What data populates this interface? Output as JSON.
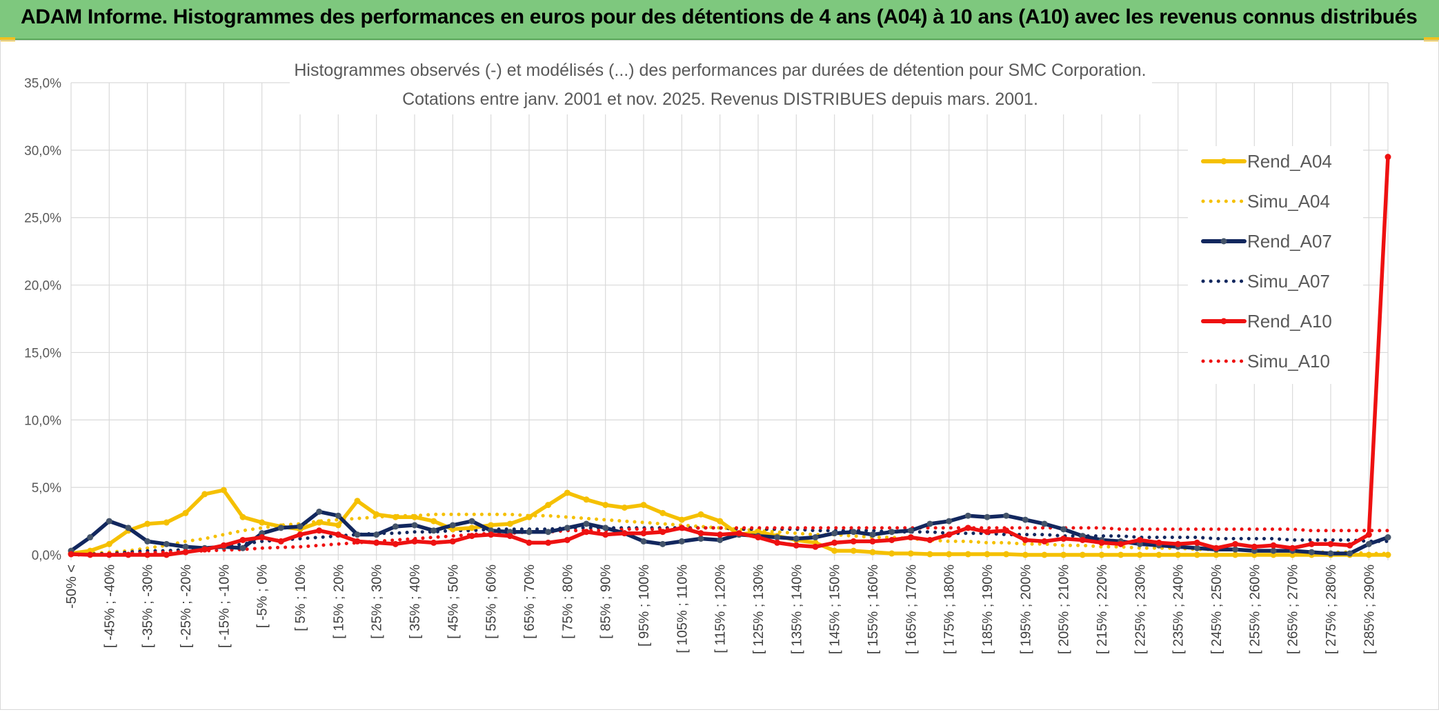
{
  "header": {
    "title": "ADAM Informe. Histogrammes des performances en euros pour des détentions de 4 ans (A04) à 10 ans (A10) avec les revenus connus distribués"
  },
  "chart_data": {
    "type": "line",
    "title": "Histogrammes observés (-) et modélisés (...) des performances par durées de détention pour SMC Corporation.",
    "subtitle": "Cotations entre janv. 2001 et nov. 2025. Revenus DISTRIBUES depuis mars. 2001.",
    "xlabel": "",
    "ylabel": "",
    "ylim": [
      0,
      35
    ],
    "y_ticks": [
      "0,0%",
      "5,0%",
      "10,0%",
      "15,0%",
      "20,0%",
      "25,0%",
      "30,0%",
      "35,0%"
    ],
    "x_labels": [
      "-50% <",
      "[ -45% ; -40%",
      "[ -35% ; -30%",
      "[ -25% ; -20%",
      "[ -15% ; -10%",
      "[ -5% ; 0%",
      "[ 5% ; 10%",
      "[ 15% ; 20%",
      "[ 25% ; 30%",
      "[ 35% ; 40%",
      "[ 45% ; 50%",
      "[ 55% ; 60%",
      "[ 65% ; 70%",
      "[ 75% ; 80%",
      "[ 85% ; 90%",
      "[ 95% ; 100%",
      "[ 105% ; 110%",
      "[ 115% ; 120%",
      "[ 125% ; 130%",
      "[ 135% ; 140%",
      "[ 145% ; 150%",
      "[ 155% ; 160%",
      "[ 165% ; 170%",
      "[ 175% ; 180%",
      "[ 185% ; 190%",
      "[ 195% ; 200%",
      "[ 205% ; 210%",
      "[ 215% ; 220%",
      "[ 225% ; 230%",
      "[ 235% ; 240%",
      "[ 245% ; 250%",
      "[ 255% ; 260%",
      "[ 265% ; 270%",
      "[ 275% ; 280%",
      "[ 285% ; 290%"
    ],
    "series": [
      {
        "name": "Rend_A04",
        "style": "solid",
        "color": "#f5c000",
        "values": [
          0.1,
          0.3,
          0.8,
          1.8,
          2.3,
          2.4,
          3.1,
          4.5,
          4.8,
          2.8,
          2.4,
          2.1,
          1.9,
          2.4,
          2.2,
          4.0,
          3.0,
          2.8,
          2.8,
          2.5,
          1.9,
          2.0,
          2.2,
          2.3,
          2.8,
          3.7,
          4.6,
          4.1,
          3.7,
          3.5,
          3.7,
          3.1,
          2.6,
          3.0,
          2.5,
          1.5,
          1.7,
          1.4,
          1.1,
          0.9,
          0.3,
          0.3,
          0.2,
          0.1,
          0.1,
          0.05,
          0.05,
          0.05,
          0.05,
          0.05,
          0,
          0,
          0,
          0,
          0,
          0,
          0,
          0,
          0,
          0,
          0,
          0,
          0,
          0,
          0,
          0,
          0,
          0,
          0,
          0
        ]
      },
      {
        "name": "Simu_A04",
        "style": "dotted",
        "color": "#f5c000",
        "values": [
          0.05,
          0.1,
          0.2,
          0.3,
          0.5,
          0.7,
          1.0,
          1.2,
          1.5,
          1.8,
          2.0,
          2.2,
          2.3,
          2.5,
          2.6,
          2.7,
          2.8,
          2.9,
          2.9,
          3.0,
          3.0,
          3.0,
          3.0,
          3.0,
          2.9,
          2.9,
          2.8,
          2.7,
          2.6,
          2.5,
          2.4,
          2.3,
          2.2,
          2.1,
          2.0,
          1.9,
          1.8,
          1.7,
          1.6,
          1.5,
          1.5,
          1.4,
          1.3,
          1.3,
          1.2,
          1.1,
          1.0,
          1.0,
          0.9,
          0.9,
          0.8,
          0.8,
          0.7,
          0.7,
          0.6,
          0.6,
          0.5,
          0.5,
          0.5,
          0.4,
          0.4,
          0.4,
          0.3,
          0.3,
          0.3,
          0.2,
          0.2,
          0.2,
          0.1,
          0.1
        ]
      },
      {
        "name": "Rend_A07",
        "style": "solid",
        "color": "#12275e",
        "values": [
          0.3,
          1.3,
          2.5,
          2.0,
          1.0,
          0.8,
          0.6,
          0.5,
          0.6,
          0.5,
          1.6,
          2.0,
          2.1,
          3.2,
          2.9,
          1.5,
          1.5,
          2.1,
          2.2,
          1.8,
          2.2,
          2.5,
          1.8,
          1.7,
          1.7,
          1.7,
          2.0,
          2.3,
          2.0,
          1.6,
          1.0,
          0.8,
          1.0,
          1.2,
          1.1,
          1.5,
          1.4,
          1.3,
          1.2,
          1.3,
          1.6,
          1.7,
          1.5,
          1.7,
          1.8,
          2.3,
          2.5,
          2.9,
          2.8,
          2.9,
          2.6,
          2.3,
          1.9,
          1.4,
          1.1,
          1.0,
          0.8,
          0.7,
          0.6,
          0.5,
          0.4,
          0.4,
          0.3,
          0.3,
          0.3,
          0.2,
          0.1,
          0.1,
          0.8,
          1.3
        ]
      },
      {
        "name": "Simu_A07",
        "style": "dotted",
        "color": "#12275e",
        "values": [
          0.0,
          0.05,
          0.1,
          0.2,
          0.3,
          0.3,
          0.4,
          0.5,
          0.6,
          0.8,
          1.0,
          1.1,
          1.2,
          1.3,
          1.4,
          1.5,
          1.6,
          1.6,
          1.7,
          1.7,
          1.8,
          1.8,
          1.9,
          1.9,
          1.9,
          1.9,
          2.0,
          2.0,
          2.0,
          2.0,
          2.0,
          2.0,
          2.0,
          2.0,
          2.0,
          1.9,
          1.9,
          1.9,
          1.9,
          1.8,
          1.8,
          1.8,
          1.8,
          1.7,
          1.7,
          1.7,
          1.6,
          1.6,
          1.6,
          1.5,
          1.5,
          1.5,
          1.4,
          1.4,
          1.4,
          1.4,
          1.3,
          1.3,
          1.3,
          1.3,
          1.2,
          1.2,
          1.2,
          1.2,
          1.1,
          1.1,
          1.1,
          1.1,
          1.0,
          1.0
        ]
      },
      {
        "name": "Rend_A10",
        "style": "solid",
        "color": "#ee1111",
        "values": [
          0.05,
          0.0,
          0.0,
          0.0,
          0.0,
          0.0,
          0.2,
          0.4,
          0.7,
          1.1,
          1.3,
          1.0,
          1.5,
          1.8,
          1.5,
          1.0,
          0.9,
          0.8,
          1.0,
          0.9,
          1.0,
          1.4,
          1.5,
          1.4,
          0.9,
          0.9,
          1.1,
          1.7,
          1.5,
          1.6,
          1.6,
          1.7,
          2.0,
          1.6,
          1.5,
          1.6,
          1.3,
          0.9,
          0.7,
          0.6,
          0.9,
          1.0,
          1.0,
          1.1,
          1.3,
          1.1,
          1.5,
          2.0,
          1.7,
          1.8,
          1.1,
          1.0,
          1.2,
          1.1,
          0.9,
          0.8,
          1.1,
          0.9,
          0.8,
          0.9,
          0.5,
          0.8,
          0.6,
          0.7,
          0.5,
          0.8,
          0.8,
          0.7,
          1.5,
          29.5
        ]
      },
      {
        "name": "Simu_A10",
        "style": "dotted",
        "color": "#ee1111",
        "values": [
          0.0,
          0.0,
          0.05,
          0.1,
          0.15,
          0.2,
          0.25,
          0.3,
          0.35,
          0.4,
          0.5,
          0.55,
          0.6,
          0.7,
          0.8,
          0.9,
          1.0,
          1.1,
          1.2,
          1.3,
          1.4,
          1.5,
          1.6,
          1.6,
          1.7,
          1.7,
          1.8,
          1.8,
          1.8,
          1.9,
          1.9,
          1.9,
          1.9,
          2.0,
          2.0,
          2.0,
          2.0,
          2.0,
          2.0,
          2.0,
          2.0,
          2.0,
          2.0,
          2.0,
          2.0,
          2.0,
          2.0,
          2.0,
          2.0,
          2.0,
          2.0,
          2.0,
          2.0,
          2.0,
          2.0,
          1.9,
          1.9,
          1.9,
          1.9,
          1.9,
          1.9,
          1.9,
          1.9,
          1.9,
          1.9,
          1.8,
          1.8,
          1.8,
          1.8,
          1.8
        ]
      }
    ],
    "legend": [
      "Rend_A04",
      "Simu_A04",
      "Rend_A07",
      "Simu_A07",
      "Rend_A10",
      "Simu_A10"
    ],
    "legend_position": "top-right",
    "grid": true
  }
}
